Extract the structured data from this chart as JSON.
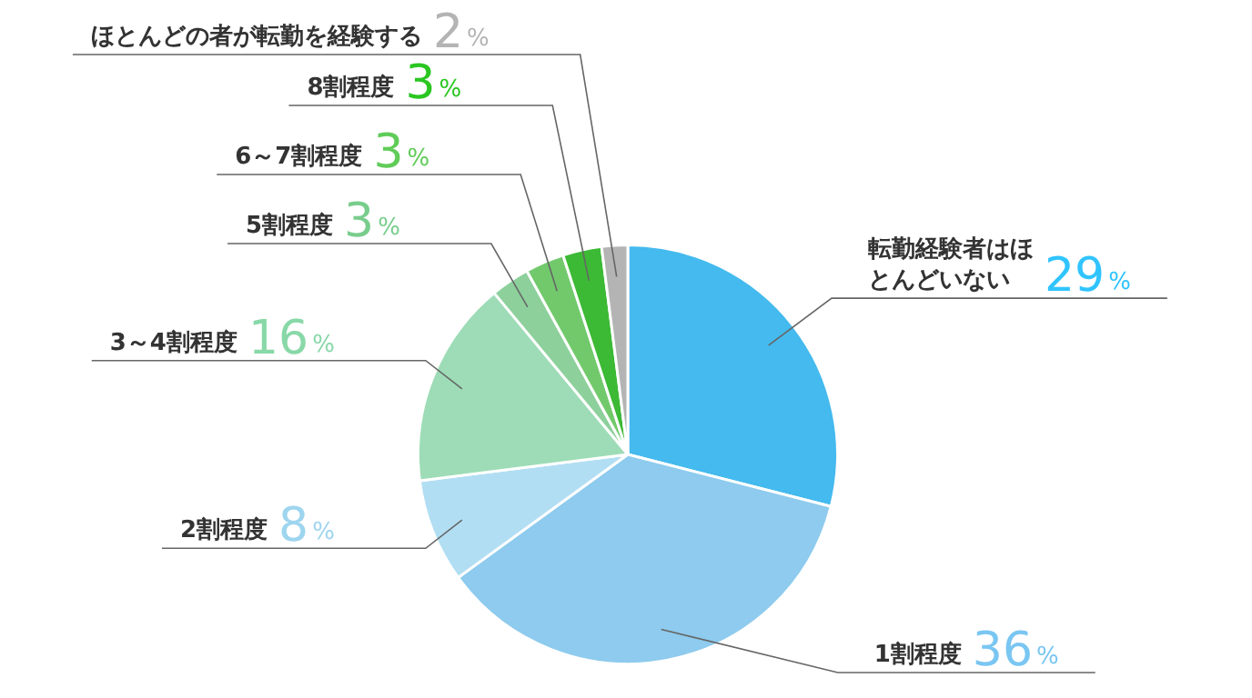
{
  "chart_data": {
    "type": "pie",
    "categories": [
      "転勤経験者はほとんどいない",
      "1割程度",
      "2割程度",
      "3～4割程度",
      "5割程度",
      "6～7割程度",
      "8割程度",
      "ほとんどの者が転勤を経験する"
    ],
    "values": [
      29,
      36,
      8,
      16,
      3,
      3,
      3,
      2
    ],
    "colors": [
      "#44baee",
      "#8ecbee",
      "#b2def3",
      "#9ddcb6",
      "#8dd09c",
      "#72c96c",
      "#3cb935",
      "#b4b4b4"
    ],
    "value_labels": [
      "29%",
      "36%",
      "8%",
      "16%",
      "3%",
      "3%",
      "3%",
      "2%"
    ],
    "legend": false
  }
}
